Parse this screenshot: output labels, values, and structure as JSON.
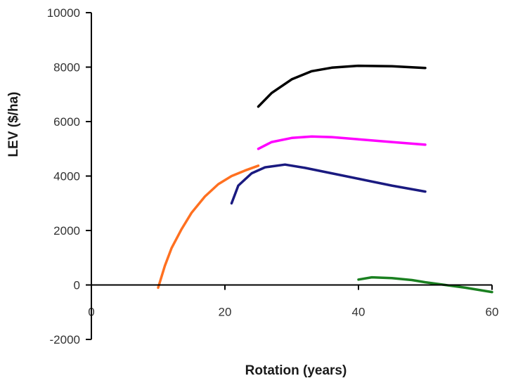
{
  "chart_data": {
    "type": "line",
    "title": "",
    "xlabel": "Rotation (years)",
    "ylabel": "LEV ($/ha)",
    "xlim": [
      0,
      60
    ],
    "ylim": [
      -2000,
      10000
    ],
    "x_ticks": [
      "0",
      "20",
      "40",
      "60"
    ],
    "y_ticks": [
      "10000",
      "8000",
      "6000",
      "4000",
      "2000",
      "0",
      "-2000"
    ],
    "grid": false,
    "legend": "none",
    "series": [
      {
        "color": "#000000",
        "points": [
          [
            25,
            6550
          ],
          [
            27,
            7050
          ],
          [
            30,
            7550
          ],
          [
            33,
            7850
          ],
          [
            36,
            7980
          ],
          [
            40,
            8050
          ],
          [
            45,
            8030
          ],
          [
            50,
            7970
          ]
        ]
      },
      {
        "color": "#ff00ff",
        "points": [
          [
            25,
            5000
          ],
          [
            27,
            5250
          ],
          [
            30,
            5400
          ],
          [
            33,
            5450
          ],
          [
            36,
            5430
          ],
          [
            40,
            5350
          ],
          [
            45,
            5250
          ],
          [
            50,
            5150
          ]
        ]
      },
      {
        "color": "#1a1a80",
        "points": [
          [
            21,
            3000
          ],
          [
            22,
            3650
          ],
          [
            24,
            4100
          ],
          [
            26,
            4320
          ],
          [
            29,
            4420
          ],
          [
            32,
            4300
          ],
          [
            36,
            4100
          ],
          [
            40,
            3900
          ],
          [
            45,
            3650
          ],
          [
            50,
            3430
          ]
        ]
      },
      {
        "color": "#ff7020",
        "points": [
          [
            10,
            -100
          ],
          [
            11,
            700
          ],
          [
            12,
            1350
          ],
          [
            13.5,
            2050
          ],
          [
            15,
            2650
          ],
          [
            17,
            3250
          ],
          [
            19,
            3700
          ],
          [
            21,
            4000
          ],
          [
            23,
            4200
          ],
          [
            25,
            4380
          ]
        ]
      },
      {
        "color": "#1a8020",
        "points": [
          [
            40,
            200
          ],
          [
            42,
            280
          ],
          [
            45,
            250
          ],
          [
            48,
            180
          ],
          [
            50,
            100
          ],
          [
            53,
            0
          ],
          [
            56,
            -100
          ],
          [
            60,
            -260
          ]
        ]
      }
    ]
  }
}
